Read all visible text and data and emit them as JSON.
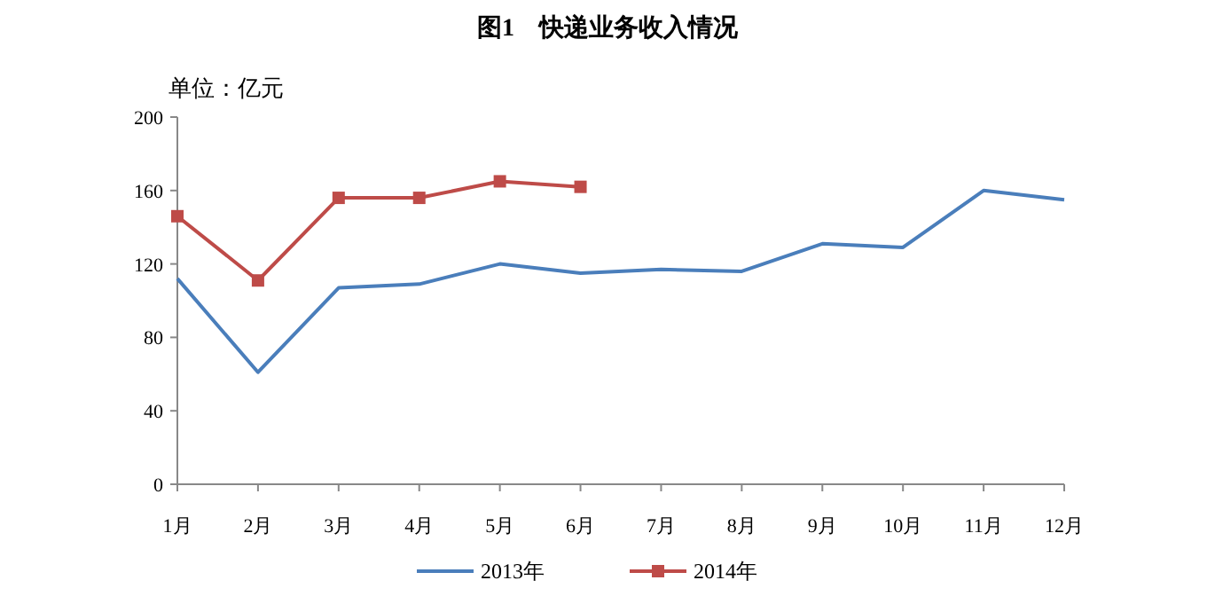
{
  "chart_data": {
    "type": "line",
    "title": "图1　快递业务收入情况",
    "ylabel": "单位：亿元",
    "categories": [
      "1月",
      "2月",
      "3月",
      "4月",
      "5月",
      "6月",
      "7月",
      "8月",
      "9月",
      "10月",
      "11月",
      "12月"
    ],
    "series": [
      {
        "name": "2013年",
        "color": "#4a7ebb",
        "marker": "none",
        "values": [
          112,
          61,
          107,
          109,
          120,
          115,
          117,
          116,
          131,
          129,
          160,
          155
        ]
      },
      {
        "name": "2014年",
        "color": "#be4b48",
        "marker": "square",
        "values": [
          146,
          111,
          156,
          156,
          165,
          162,
          null,
          null,
          null,
          null,
          null,
          null
        ]
      }
    ],
    "ylim": [
      0,
      200
    ],
    "yticks": [
      0,
      40,
      80,
      120,
      160,
      200
    ],
    "grid": false,
    "legend": "bottom",
    "line_style": "solid"
  }
}
